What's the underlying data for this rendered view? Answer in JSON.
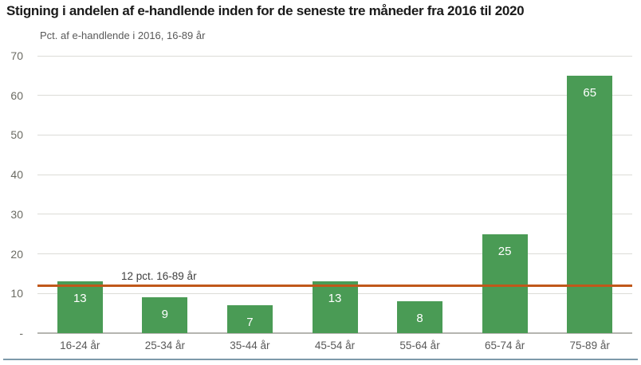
{
  "title": "Stigning i andelen af e-handlende inden for de seneste tre måneder fra 2016 til 2020",
  "subtitle": "Pct. af e-handlende i 2016, 16-89 år",
  "colors": {
    "bar": "#4a9b55",
    "reference_line": "#c0581a",
    "gridline": "#dcdcd7",
    "axis_baseline": "#b5b5b0",
    "tick_text": "#6b6b63",
    "label_text": "#595959",
    "annotation_text": "#404040",
    "bar_value_text": "#ffffff",
    "bottom_rule": "#7d9aaa",
    "title_text": "#1a1a1a"
  },
  "chart_data": {
    "type": "bar",
    "title": "Stigning i andelen af e-handlende inden for de seneste tre måneder fra 2016 til 2020",
    "subtitle": "Pct. af e-handlende i 2016, 16-89 år",
    "categories": [
      "16-24 år",
      "25-34 år",
      "35-44 år",
      "45-54 år",
      "55-64 år",
      "65-74 år",
      "75-89 år"
    ],
    "values": [
      13,
      9,
      7,
      13,
      8,
      25,
      65
    ],
    "xlabel": "",
    "ylabel": "Pct. af e-handlende i 2016, 16-89 år",
    "ylim": [
      0,
      70
    ],
    "yticks": [
      0,
      10,
      20,
      30,
      40,
      50,
      60,
      70
    ],
    "ytick_labels": [
      "-",
      "10",
      "20",
      "30",
      "40",
      "50",
      "60",
      "70"
    ],
    "grid": true,
    "legend": "none",
    "bar_labels_inside": true,
    "reference_line": {
      "value": 12,
      "label": "12 pct. 16-89 år"
    }
  }
}
